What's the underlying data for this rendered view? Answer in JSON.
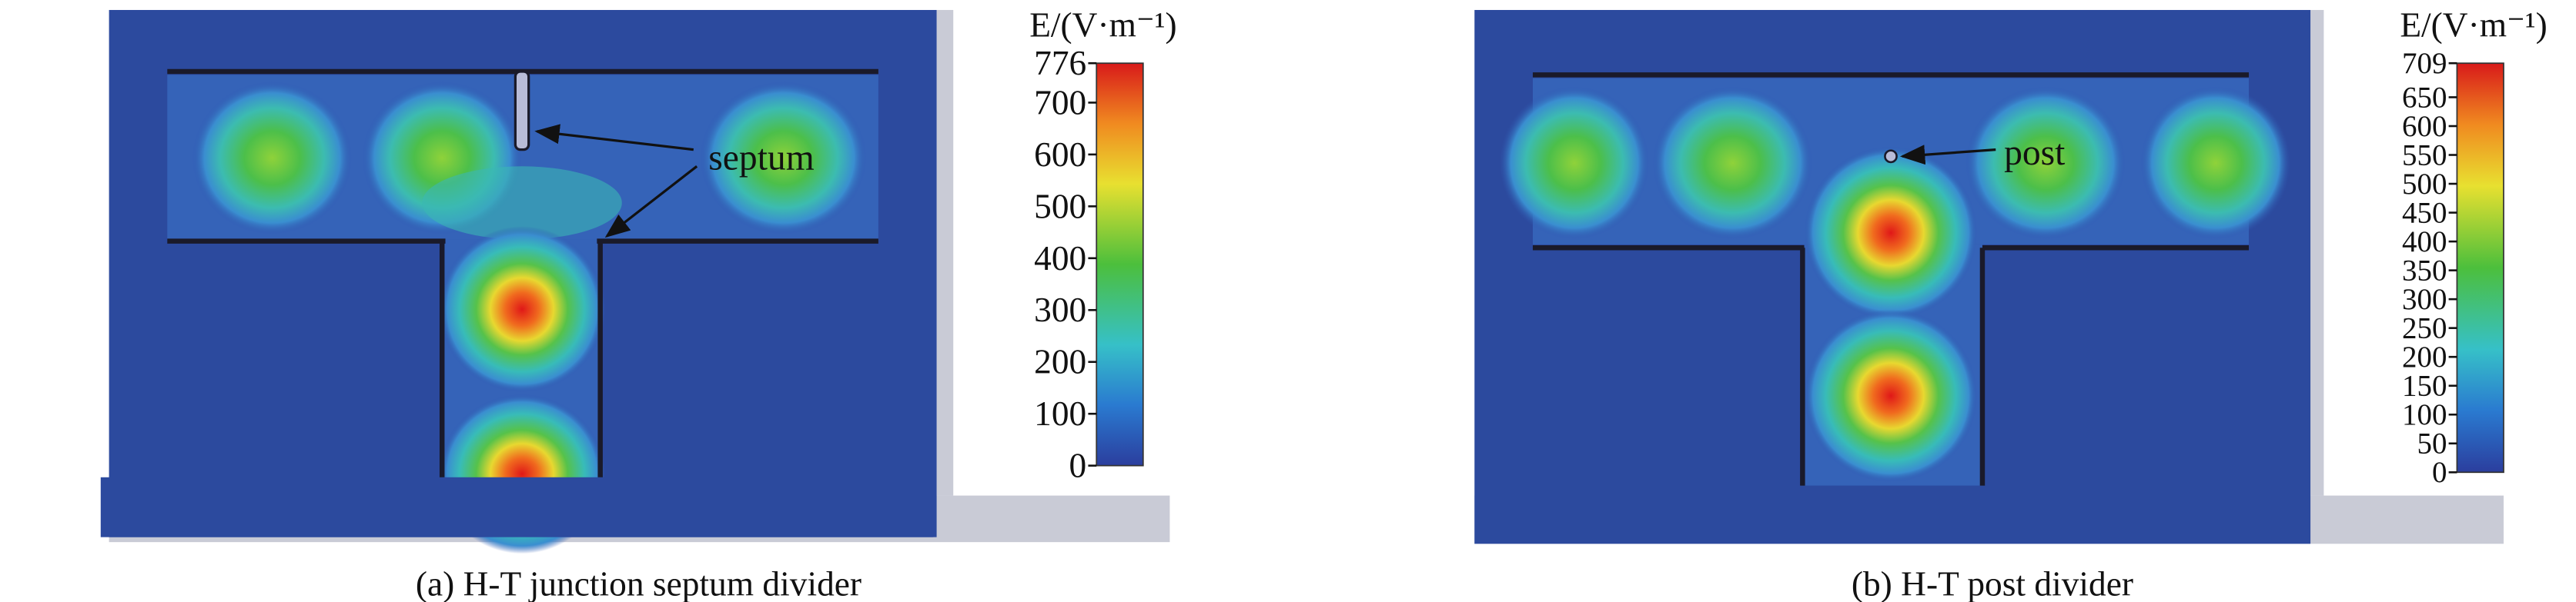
{
  "panels": [
    {
      "caption": "(a) H-T junction septum divider",
      "annotation": "septum",
      "colorbar": {
        "title": "E/(V·m⁻¹)",
        "ticks": [
          776,
          700,
          600,
          500,
          400,
          300,
          200,
          100,
          0
        ]
      }
    },
    {
      "caption": "(b) H-T post divider",
      "annotation": "post",
      "colorbar": {
        "title": "E/(V·m⁻¹)",
        "ticks": [
          709,
          650,
          600,
          550,
          500,
          450,
          400,
          350,
          300,
          250,
          200,
          150,
          100,
          50,
          0
        ]
      }
    }
  ]
}
